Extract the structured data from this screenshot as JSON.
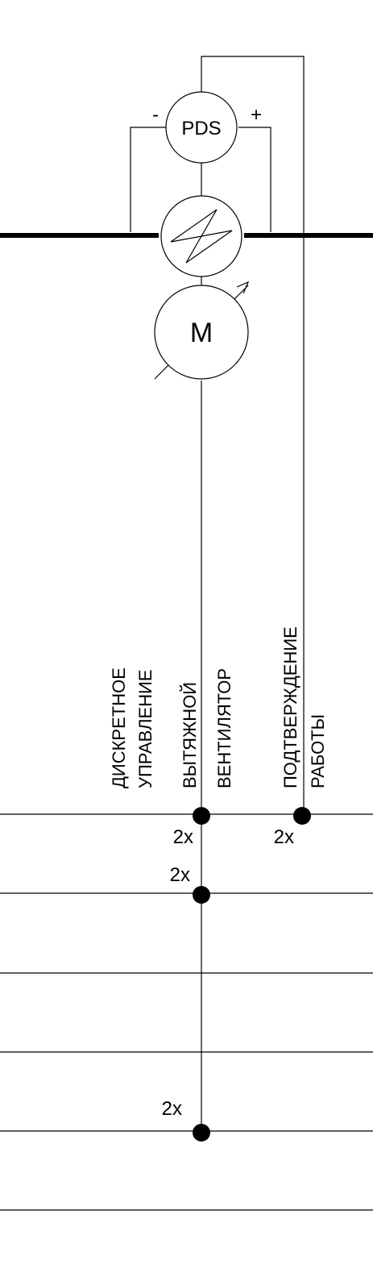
{
  "pds": {
    "label": "PDS",
    "minus": "-",
    "plus": "+"
  },
  "motor": {
    "label": "M"
  },
  "signals": {
    "discrete_control": {
      "line1": "ДИСКРЕТНОЕ",
      "line2": "УПРАВЛЕНИЕ"
    },
    "exhaust_fan": {
      "line1": "ВЫТЯЖНОЙ",
      "line2": "ВЕНТИЛЯТОР"
    },
    "run_confirmation": {
      "line1": "ПОДТВЕРЖДЕНИЕ",
      "line2": "РАБОТЫ"
    }
  },
  "multipliers": {
    "bus1_fan": "2x",
    "bus1_confirm": "2x",
    "bus2_fan": "2x",
    "bus5_fan": "2x"
  }
}
